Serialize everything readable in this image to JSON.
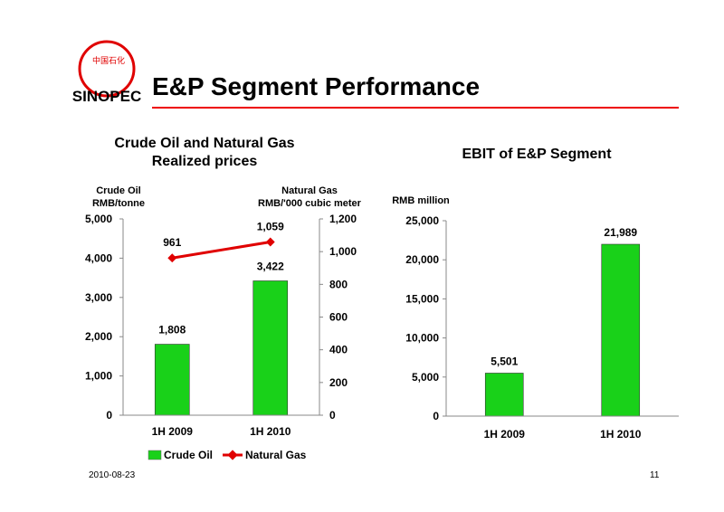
{
  "page": {
    "title": "E&P Segment Performance",
    "logo_text": "中国石化 SINOPEC",
    "date": "2010-08-23",
    "page_number": "11"
  },
  "colors": {
    "accent": "#e00000",
    "bar": "#19d119",
    "line": "#e00000"
  },
  "chart_data": [
    {
      "type": "bar",
      "title": "Crude Oil and Natural Gas Realized prices",
      "title_lines": [
        "Crude Oil and Natural Gas",
        "Realized prices"
      ],
      "categories": [
        "1H 2009",
        "1H 2010"
      ],
      "series": [
        {
          "name": "Crude Oil",
          "type": "bar",
          "axis": "left",
          "values": [
            1808,
            3422
          ],
          "labels": [
            "1,808",
            "3,422"
          ]
        },
        {
          "name": "Natural Gas",
          "type": "line",
          "axis": "right",
          "values": [
            961,
            1059
          ],
          "labels": [
            "961",
            "1,059"
          ]
        }
      ],
      "ylabel_left": [
        "Crude Oil",
        "RMB/tonne"
      ],
      "ylabel_right": [
        "Natural Gas",
        "RMB/'000 cubic meter"
      ],
      "ylim_left": [
        0,
        5000
      ],
      "ylim_right": [
        0,
        1200
      ],
      "yticks_left": [
        "0",
        "1,000",
        "2,000",
        "3,000",
        "4,000",
        "5,000"
      ],
      "yticks_right": [
        "0",
        "200",
        "400",
        "600",
        "800",
        "1,000",
        "1,200"
      ],
      "legend": [
        "Crude Oil",
        "Natural Gas"
      ],
      "legend_position": "bottom",
      "grid": false
    },
    {
      "type": "bar",
      "title": "EBIT of E&P Segment",
      "categories": [
        "1H 2009",
        "1H 2010"
      ],
      "values": [
        5501,
        21989
      ],
      "labels": [
        "5,501",
        "21,989"
      ],
      "ylabel": "RMB million",
      "ylim": [
        0,
        25000
      ],
      "yticks": [
        "0",
        "5,000",
        "10,000",
        "15,000",
        "20,000",
        "25,000"
      ],
      "grid": false
    }
  ]
}
